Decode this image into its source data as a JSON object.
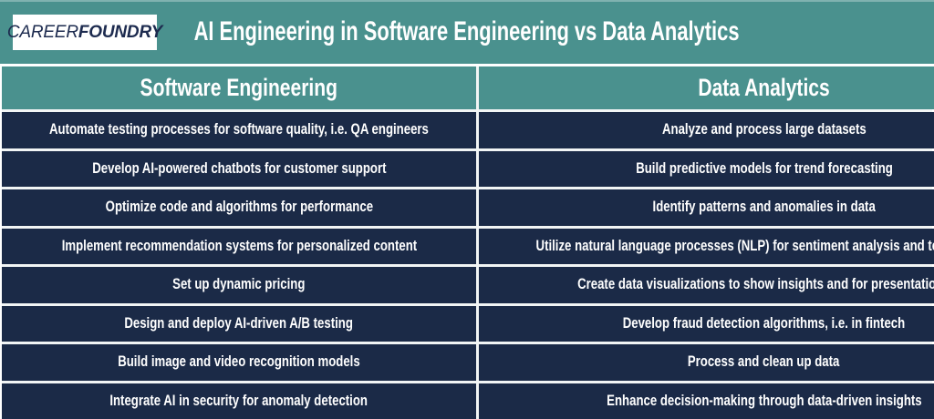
{
  "brand": {
    "career": "CAREER",
    "foundry": "FOUNDRY"
  },
  "colors": {
    "background_teal": "#4a918e",
    "row_navy": "#1b2a47",
    "logo_navy": "#1d2b4f",
    "divider_white": "#ffffff",
    "text_white": "#ffffff"
  },
  "chart_data": {
    "type": "table",
    "title": "AI Engineering in Software Engineering vs Data Analytics",
    "columns": [
      "Software Engineering",
      "Data Analytics"
    ],
    "rows": [
      [
        "Automate testing processes for software quality, i.e. QA engineers",
        "Analyze and process large datasets"
      ],
      [
        "Develop AI-powered chatbots for customer support",
        "Build predictive models for trend forecasting"
      ],
      [
        "Optimize code and algorithms for performance",
        "Identify patterns and anomalies in data"
      ],
      [
        "Implement recommendation systems for personalized content",
        "Utilize natural language processes (NLP) for sentiment analysis and text mining"
      ],
      [
        "Set up dynamic pricing",
        "Create data visualizations to show insights and for presentations"
      ],
      [
        "Design and deploy AI-driven A/B testing",
        "Develop fraud detection algorithms, i.e. in fintech"
      ],
      [
        "Build image and video recognition models",
        "Process and clean up data"
      ],
      [
        "Integrate AI in security for anomaly detection",
        "Enhance decision-making through data-driven insights"
      ]
    ],
    "layout": {
      "legend": "none",
      "grid": "white cell dividers",
      "column_split_percent": [
        45,
        55
      ]
    }
  }
}
